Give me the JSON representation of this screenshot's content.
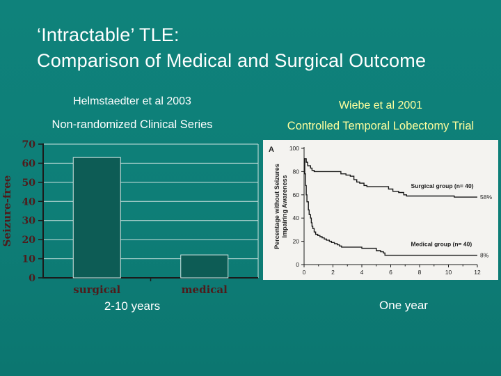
{
  "slide": {
    "title_line1": "‘Intractable’ TLE:",
    "title_line2": "Comparison of Medical and Surgical Outcome",
    "left_panel": {
      "heading": "Helmstaedter et al 2003",
      "subheading": "Non-randomized Clinical Series",
      "caption": "2-10 years"
    },
    "right_panel": {
      "heading": "Wiebe et al 2001",
      "subheading": "Controlled Temporal Lobectomy Trial",
      "caption": "One year"
    }
  },
  "colors": {
    "background_teal": "#0e7e77",
    "bar_fill": "#0d5c55",
    "bar_stroke": "#d4e4e2",
    "gridline": "#cde3e0",
    "axis_dark": "#1b1b1b",
    "maroon_text": "#4e1b1b",
    "heading_yellow": "#ffff9e",
    "figure_bg": "#f4f3f0",
    "figure_ink": "#1c1c1c"
  },
  "chart_data": [
    {
      "type": "bar",
      "title": "",
      "categories": [
        "surgical",
        "medical"
      ],
      "values": [
        63,
        12
      ],
      "xlabel": "",
      "ylabel": "Seizure-free",
      "ylim": [
        0,
        70
      ],
      "yticks": [
        0,
        10,
        20,
        30,
        40,
        50,
        60,
        70
      ],
      "grid": true
    },
    {
      "type": "line",
      "subtype": "kaplan-meier-step",
      "panel_label": "A",
      "title": "",
      "xlabel": "",
      "ylabel_line1": "Percentage without Seizures",
      "ylabel_line2": "Impairing Awareness",
      "xlim": [
        0,
        12
      ],
      "ylim": [
        0,
        100
      ],
      "xticks": [
        0,
        2,
        4,
        6,
        8,
        10,
        12
      ],
      "xminorticks": [
        1,
        3,
        5,
        7,
        9,
        11
      ],
      "yticks": [
        0,
        20,
        40,
        60,
        80,
        100
      ],
      "grid": false,
      "series": [
        {
          "name": "Surgical group (n= 40)",
          "end_label": "58%",
          "label_x": 7.4,
          "label_y": 66,
          "points": [
            [
              0,
              91
            ],
            [
              0.15,
              88
            ],
            [
              0.25,
              85
            ],
            [
              0.45,
              83
            ],
            [
              0.55,
              81
            ],
            [
              0.7,
              80
            ],
            [
              2.45,
              80
            ],
            [
              2.55,
              78
            ],
            [
              2.9,
              77
            ],
            [
              3.2,
              76
            ],
            [
              3.45,
              73
            ],
            [
              3.65,
              71
            ],
            [
              3.85,
              70
            ],
            [
              4.15,
              68
            ],
            [
              4.35,
              67
            ],
            [
              5.6,
              67
            ],
            [
              5.85,
              65
            ],
            [
              6.15,
              63
            ],
            [
              6.55,
              62
            ],
            [
              6.9,
              60
            ],
            [
              7.1,
              59
            ],
            [
              10.3,
              59
            ],
            [
              10.4,
              58
            ],
            [
              12,
              58
            ]
          ]
        },
        {
          "name": "Medical group (n= 40)",
          "end_label": "8%",
          "label_x": 7.4,
          "label_y": 16,
          "points": [
            [
              0,
              91
            ],
            [
              0.05,
              78
            ],
            [
              0.1,
              68
            ],
            [
              0.15,
              60
            ],
            [
              0.2,
              54
            ],
            [
              0.3,
              47
            ],
            [
              0.35,
              43
            ],
            [
              0.45,
              40
            ],
            [
              0.5,
              36
            ],
            [
              0.55,
              33
            ],
            [
              0.6,
              31
            ],
            [
              0.7,
              28
            ],
            [
              0.8,
              26
            ],
            [
              0.95,
              25
            ],
            [
              1.1,
              24
            ],
            [
              1.25,
              23
            ],
            [
              1.4,
              22
            ],
            [
              1.55,
              21
            ],
            [
              1.75,
              20
            ],
            [
              1.9,
              19
            ],
            [
              2.1,
              18
            ],
            [
              2.3,
              17
            ],
            [
              2.45,
              16
            ],
            [
              2.6,
              15
            ],
            [
              3.9,
              15
            ],
            [
              4.0,
              14
            ],
            [
              4.9,
              14
            ],
            [
              5.0,
              12
            ],
            [
              5.3,
              11
            ],
            [
              5.5,
              10
            ],
            [
              5.6,
              8
            ],
            [
              12,
              8
            ]
          ]
        }
      ]
    }
  ]
}
